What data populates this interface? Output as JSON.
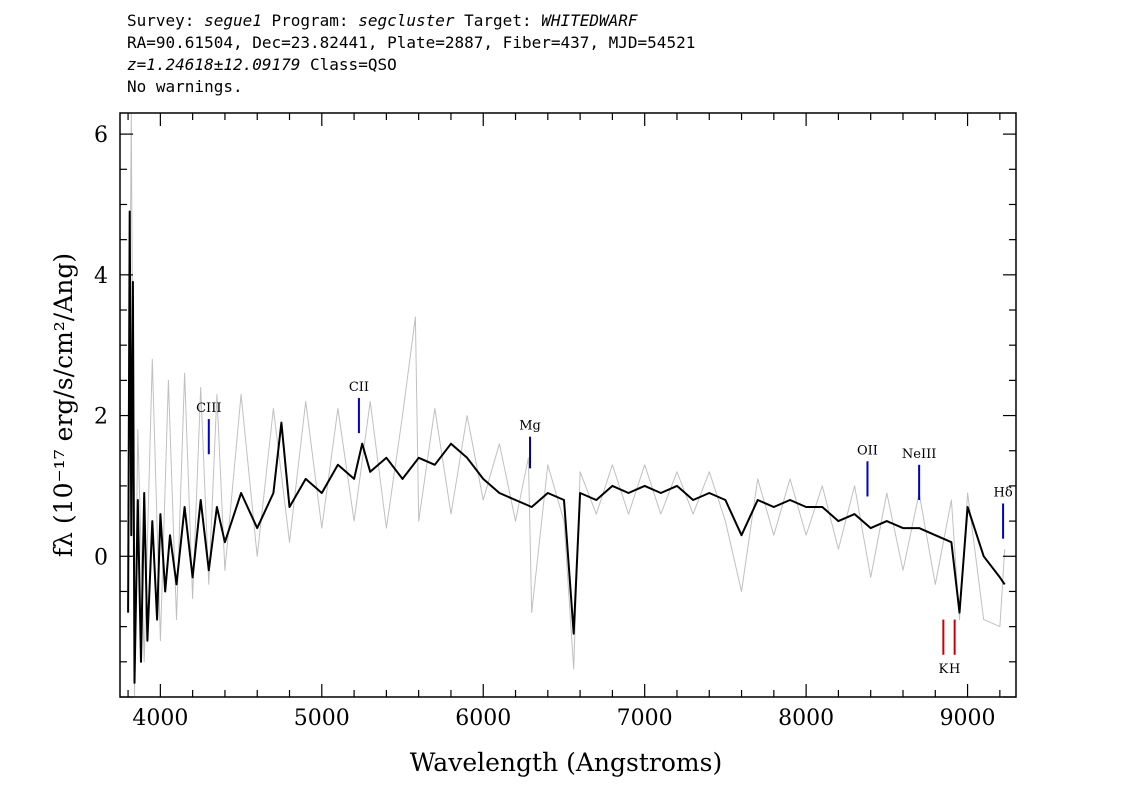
{
  "header": {
    "line1": {
      "survey_label": "Survey: ",
      "survey": "segue1",
      "program_label": " Program: ",
      "program": "segcluster",
      "target_label": " Target: ",
      "target": "WHITEDWARF"
    },
    "line2": "RA=90.61504, Dec=23.82441, Plate=2887, Fiber=437, MJD=54521",
    "line3": {
      "z": "z=1.24618±12.09179",
      "class_text": " Class=QSO"
    },
    "line4": "No warnings."
  },
  "chart_data": {
    "type": "line",
    "xlabel": "Wavelength (Angstroms)",
    "ylabel": "fλ (10⁻¹⁷ erg/s/cm²/Ang)",
    "xlim": [
      3750,
      9300
    ],
    "ylim": [
      -2.0,
      6.3
    ],
    "x_ticks": [
      4000,
      5000,
      6000,
      7000,
      8000,
      9000
    ],
    "y_ticks": [
      0,
      2,
      4,
      6
    ],
    "grid": false,
    "series": [
      {
        "role": "error",
        "color": "#c0c0c0",
        "points": [
          [
            3800,
            0.3
          ],
          [
            3820,
            6.3
          ],
          [
            3840,
            -2.0
          ],
          [
            3860,
            1.8
          ],
          [
            3900,
            -1.5
          ],
          [
            3950,
            2.8
          ],
          [
            4000,
            -1.2
          ],
          [
            4050,
            2.5
          ],
          [
            4100,
            -0.9
          ],
          [
            4150,
            2.6
          ],
          [
            4200,
            -0.6
          ],
          [
            4250,
            2.4
          ],
          [
            4300,
            -0.4
          ],
          [
            4350,
            2.3
          ],
          [
            4400,
            -0.2
          ],
          [
            4500,
            2.3
          ],
          [
            4600,
            0.0
          ],
          [
            4700,
            2.1
          ],
          [
            4800,
            0.2
          ],
          [
            4900,
            2.2
          ],
          [
            5000,
            0.4
          ],
          [
            5100,
            2.1
          ],
          [
            5200,
            0.5
          ],
          [
            5300,
            2.2
          ],
          [
            5400,
            0.4
          ],
          [
            5500,
            2.0
          ],
          [
            5580,
            3.4
          ],
          [
            5600,
            0.5
          ],
          [
            5700,
            2.1
          ],
          [
            5800,
            0.6
          ],
          [
            5900,
            2.0
          ],
          [
            6000,
            0.8
          ],
          [
            6100,
            1.6
          ],
          [
            6200,
            0.5
          ],
          [
            6280,
            1.4
          ],
          [
            6300,
            -0.8
          ],
          [
            6400,
            1.3
          ],
          [
            6500,
            0.5
          ],
          [
            6560,
            -1.6
          ],
          [
            6600,
            1.2
          ],
          [
            6700,
            0.6
          ],
          [
            6800,
            1.3
          ],
          [
            6900,
            0.6
          ],
          [
            7000,
            1.3
          ],
          [
            7100,
            0.6
          ],
          [
            7200,
            1.2
          ],
          [
            7300,
            0.6
          ],
          [
            7400,
            1.2
          ],
          [
            7500,
            0.5
          ],
          [
            7600,
            -0.5
          ],
          [
            7700,
            1.1
          ],
          [
            7800,
            0.3
          ],
          [
            7900,
            1.1
          ],
          [
            8000,
            0.3
          ],
          [
            8100,
            1.0
          ],
          [
            8200,
            0.1
          ],
          [
            8300,
            1.0
          ],
          [
            8400,
            -0.3
          ],
          [
            8500,
            0.9
          ],
          [
            8600,
            -0.2
          ],
          [
            8700,
            0.9
          ],
          [
            8800,
            -0.4
          ],
          [
            8900,
            0.8
          ],
          [
            8950,
            -0.9
          ],
          [
            9000,
            0.9
          ],
          [
            9100,
            -0.9
          ],
          [
            9200,
            -1.0
          ],
          [
            9230,
            0.1
          ]
        ]
      },
      {
        "role": "flux",
        "color": "#000000",
        "points": [
          [
            3800,
            -0.8
          ],
          [
            3810,
            4.9
          ],
          [
            3820,
            0.3
          ],
          [
            3830,
            3.9
          ],
          [
            3840,
            -1.8
          ],
          [
            3860,
            0.8
          ],
          [
            3880,
            -1.5
          ],
          [
            3900,
            0.9
          ],
          [
            3920,
            -1.2
          ],
          [
            3950,
            0.5
          ],
          [
            3980,
            -0.9
          ],
          [
            4000,
            0.6
          ],
          [
            4030,
            -0.5
          ],
          [
            4060,
            0.3
          ],
          [
            4100,
            -0.4
          ],
          [
            4150,
            0.7
          ],
          [
            4200,
            -0.3
          ],
          [
            4250,
            0.8
          ],
          [
            4300,
            -0.2
          ],
          [
            4350,
            0.7
          ],
          [
            4400,
            0.2
          ],
          [
            4500,
            0.9
          ],
          [
            4600,
            0.4
          ],
          [
            4700,
            0.9
          ],
          [
            4750,
            1.9
          ],
          [
            4800,
            0.7
          ],
          [
            4900,
            1.1
          ],
          [
            5000,
            0.9
          ],
          [
            5100,
            1.3
          ],
          [
            5200,
            1.1
          ],
          [
            5250,
            1.6
          ],
          [
            5300,
            1.2
          ],
          [
            5400,
            1.4
          ],
          [
            5500,
            1.1
          ],
          [
            5600,
            1.4
          ],
          [
            5700,
            1.3
          ],
          [
            5800,
            1.6
          ],
          [
            5900,
            1.4
          ],
          [
            6000,
            1.1
          ],
          [
            6100,
            0.9
          ],
          [
            6200,
            0.8
          ],
          [
            6300,
            0.7
          ],
          [
            6400,
            0.9
          ],
          [
            6500,
            0.8
          ],
          [
            6560,
            -1.1
          ],
          [
            6600,
            0.9
          ],
          [
            6700,
            0.8
          ],
          [
            6800,
            1.0
          ],
          [
            6900,
            0.9
          ],
          [
            7000,
            1.0
          ],
          [
            7100,
            0.9
          ],
          [
            7200,
            1.0
          ],
          [
            7300,
            0.8
          ],
          [
            7400,
            0.9
          ],
          [
            7500,
            0.8
          ],
          [
            7600,
            0.3
          ],
          [
            7700,
            0.8
          ],
          [
            7800,
            0.7
          ],
          [
            7900,
            0.8
          ],
          [
            8000,
            0.7
          ],
          [
            8100,
            0.7
          ],
          [
            8200,
            0.5
          ],
          [
            8300,
            0.6
          ],
          [
            8400,
            0.4
          ],
          [
            8500,
            0.5
          ],
          [
            8600,
            0.4
          ],
          [
            8700,
            0.4
          ],
          [
            8800,
            0.3
          ],
          [
            8900,
            0.2
          ],
          [
            8950,
            -0.8
          ],
          [
            9000,
            0.7
          ],
          [
            9100,
            0.0
          ],
          [
            9200,
            -0.3
          ],
          [
            9230,
            -0.4
          ]
        ]
      }
    ],
    "emission_lines": [
      {
        "label": "CIII",
        "x": 4300,
        "y_low": 1.45,
        "y_high": 1.95,
        "color": "#0000cc"
      },
      {
        "label": "CII",
        "x": 5230,
        "y_low": 1.75,
        "y_high": 2.25,
        "color": "#0000cc"
      },
      {
        "label": "Mg",
        "x": 6290,
        "y_low": 1.25,
        "y_high": 1.7,
        "color": "#000080"
      },
      {
        "label": "OII",
        "x": 8380,
        "y_low": 0.85,
        "y_high": 1.35,
        "color": "#0000cc"
      },
      {
        "label": "NeIII",
        "x": 8700,
        "y_low": 0.8,
        "y_high": 1.3,
        "color": "#0000cc"
      },
      {
        "label": "Hδ",
        "x": 9220,
        "y_low": 0.25,
        "y_high": 0.75,
        "color": "#0000cc"
      }
    ],
    "absorption_lines": [
      {
        "label": "K",
        "x": 8850,
        "y_low": -1.4,
        "y_high": -0.9,
        "color": "#cc0000"
      },
      {
        "label": "H",
        "x": 8920,
        "y_low": -1.4,
        "y_high": -0.9,
        "color": "#cc0000"
      }
    ]
  }
}
